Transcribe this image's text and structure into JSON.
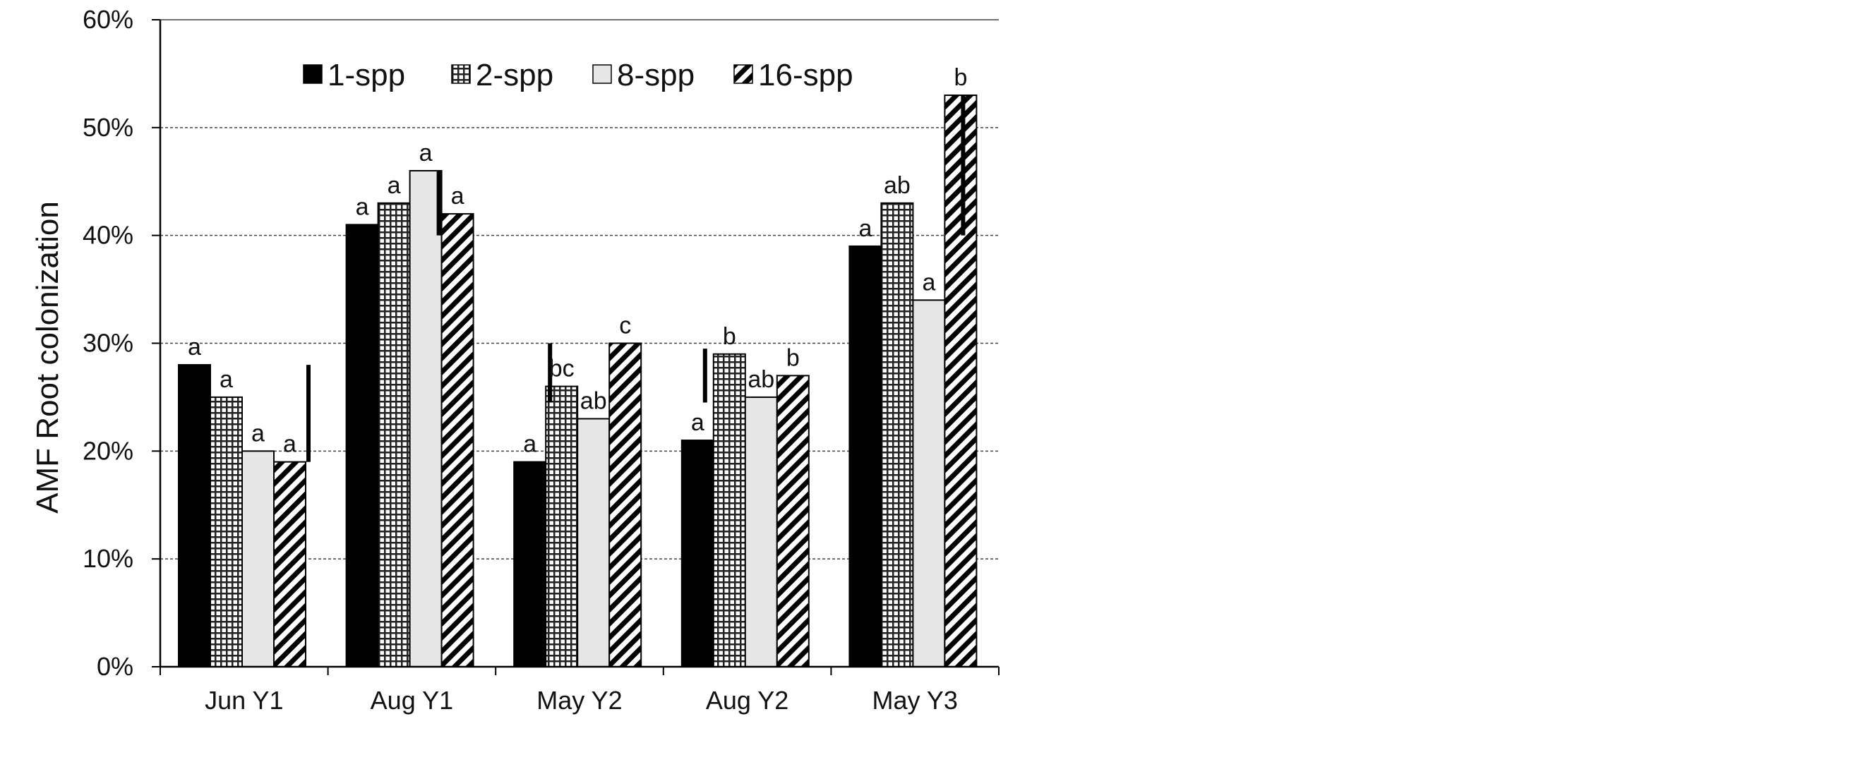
{
  "chart_data": {
    "type": "bar",
    "title": "",
    "xlabel": "",
    "ylabel": "AMF Root colonization",
    "ylim": [
      0,
      0.6
    ],
    "yticks": [
      "0%",
      "10%",
      "20%",
      "30%",
      "40%",
      "50%",
      "60%"
    ],
    "grid": true,
    "legend_position": "top",
    "categories": [
      "Jun Y1",
      "Aug Y1",
      "May Y2",
      "Aug Y2",
      "May Y3"
    ],
    "series": [
      {
        "name": "1-spp",
        "pattern": "solid",
        "color": "#000000",
        "values": [
          0.28,
          0.41,
          0.19,
          0.21,
          0.39
        ],
        "labels": [
          "a",
          "a",
          "a",
          "a",
          "a"
        ]
      },
      {
        "name": "2-spp",
        "pattern": "grid",
        "color": "#333333",
        "values": [
          0.25,
          0.43,
          0.26,
          0.29,
          0.43
        ],
        "labels": [
          "a",
          "a",
          "bc",
          "b",
          "ab"
        ]
      },
      {
        "name": "8-spp",
        "pattern": "light",
        "color": "#e6e6e6",
        "values": [
          0.2,
          0.46,
          0.23,
          0.25,
          0.34
        ],
        "labels": [
          "a",
          "a",
          "ab",
          "ab",
          "a"
        ]
      },
      {
        "name": "16-spp",
        "pattern": "hatch",
        "color": "#000000",
        "values": [
          0.19,
          0.42,
          0.3,
          0.27,
          0.53
        ],
        "labels": [
          "a",
          "a",
          "c",
          "b",
          "b"
        ]
      }
    ],
    "lsd_bars": [
      {
        "category": "Jun Y1",
        "from": 0.19,
        "to": 0.28
      },
      {
        "category": "Aug Y1",
        "from": 0.4,
        "to": 0.46
      },
      {
        "category": "May Y2",
        "from": 0.245,
        "to": 0.3
      },
      {
        "category": "Aug Y2",
        "from": 0.245,
        "to": 0.295
      },
      {
        "category": "May Y3",
        "from": 0.4,
        "to": 0.53
      }
    ]
  }
}
